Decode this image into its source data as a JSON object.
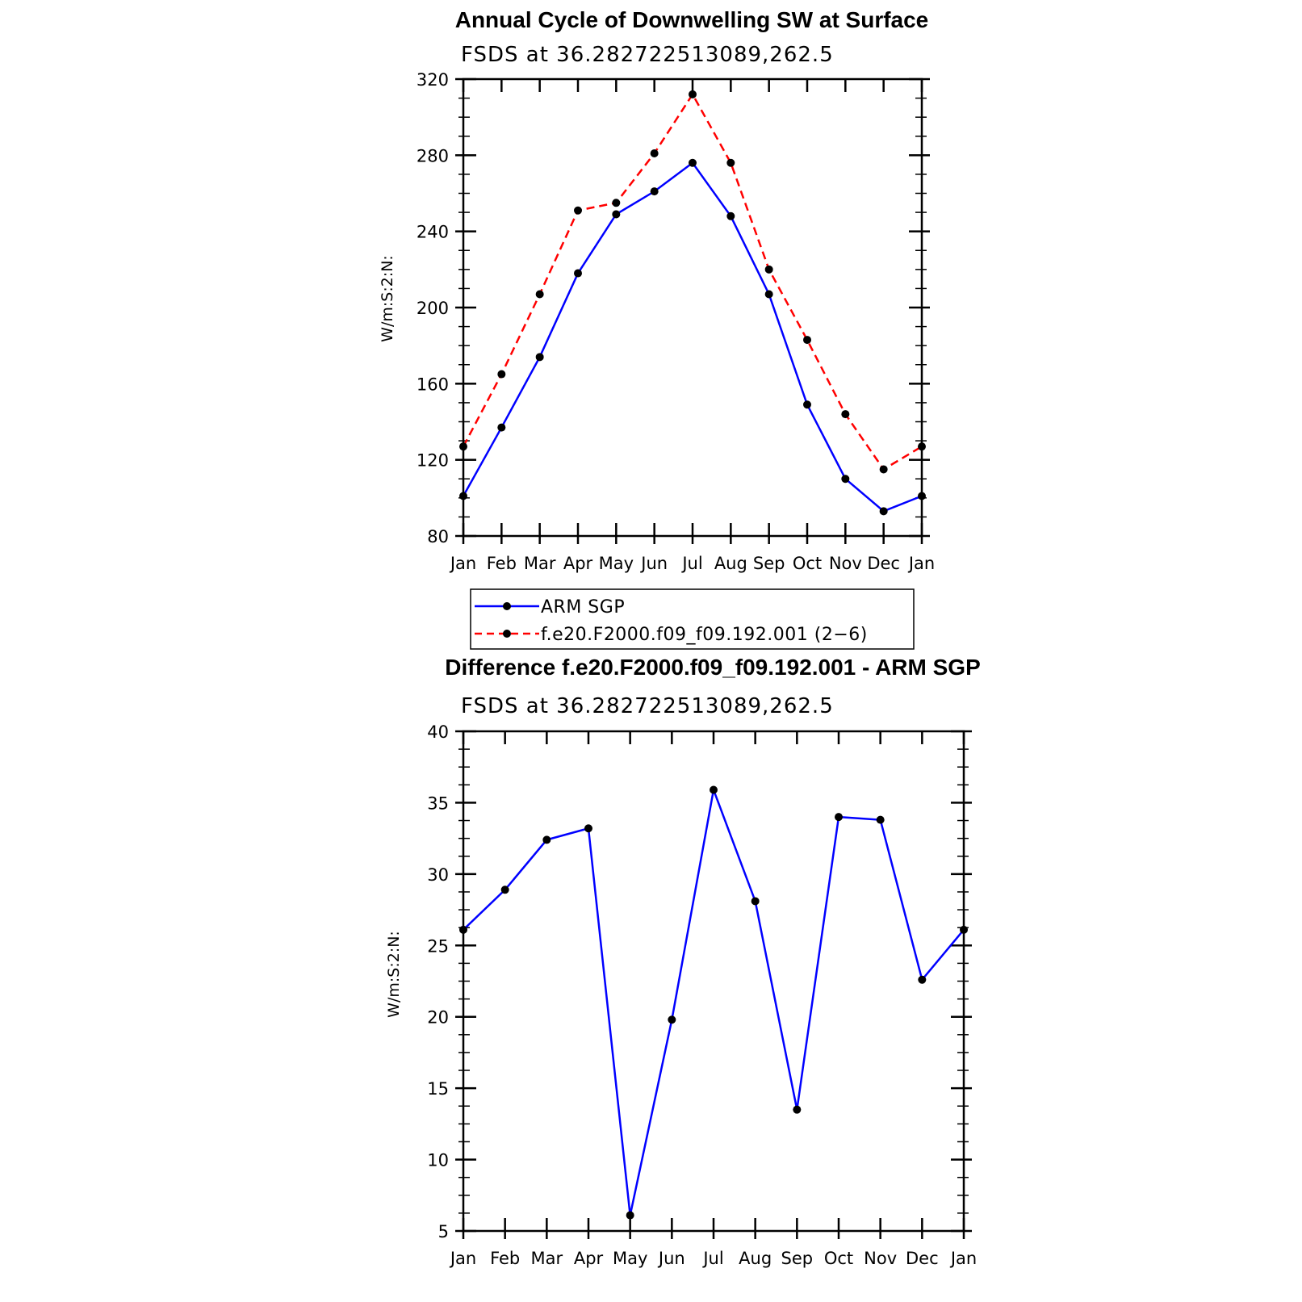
{
  "chart_data": [
    {
      "type": "line",
      "title": "Annual Cycle of Downwelling SW at Surface",
      "subtitle": "FSDS at 36.282722513089,262.5",
      "ylabel": "W/m:S:2:N:",
      "xlabel": "",
      "categories": [
        "Jan",
        "Feb",
        "Mar",
        "Apr",
        "May",
        "Jun",
        "Jul",
        "Aug",
        "Sep",
        "Oct",
        "Nov",
        "Dec",
        "Jan"
      ],
      "ylim": [
        80,
        320
      ],
      "yticks": [
        80,
        120,
        160,
        200,
        240,
        280,
        320
      ],
      "ytick_labels": [
        "80",
        "120",
        "160",
        "200",
        "240",
        "280",
        "320"
      ],
      "grid": false,
      "legend_position": "below",
      "series": [
        {
          "name": "ARM SGP",
          "color": "#0000ff",
          "dash": "solid",
          "values": [
            101,
            137,
            174,
            218,
            249,
            261,
            276,
            248,
            207,
            149,
            110,
            93,
            101
          ]
        },
        {
          "name": "f.e20.F2000.f09_f09.192.001 (2−6)",
          "color": "#ff0000",
          "dash": "dashed",
          "values": [
            127,
            165,
            207,
            251,
            255,
            281,
            312,
            276,
            220,
            183,
            144,
            115,
            127
          ]
        }
      ]
    },
    {
      "type": "line",
      "title": "Difference f.e20.F2000.f09_f09.192.001 - ARM SGP",
      "subtitle": "FSDS at 36.282722513089,262.5",
      "ylabel": "W/m:S:2:N:",
      "xlabel": "",
      "categories": [
        "Jan",
        "Feb",
        "Mar",
        "Apr",
        "May",
        "Jun",
        "Jul",
        "Aug",
        "Sep",
        "Oct",
        "Nov",
        "Dec",
        "Jan"
      ],
      "ylim": [
        5,
        40
      ],
      "yticks": [
        5,
        10,
        15,
        20,
        25,
        30,
        35,
        40
      ],
      "ytick_labels": [
        "5",
        "10",
        "15",
        "20",
        "25",
        "30",
        "35",
        "40"
      ],
      "grid": false,
      "series": [
        {
          "color": "#0000ff",
          "dash": "solid",
          "values": [
            26.1,
            28.9,
            32.4,
            33.2,
            6.1,
            19.8,
            35.9,
            28.1,
            13.5,
            34.0,
            33.8,
            22.6,
            26.1
          ]
        }
      ]
    }
  ]
}
